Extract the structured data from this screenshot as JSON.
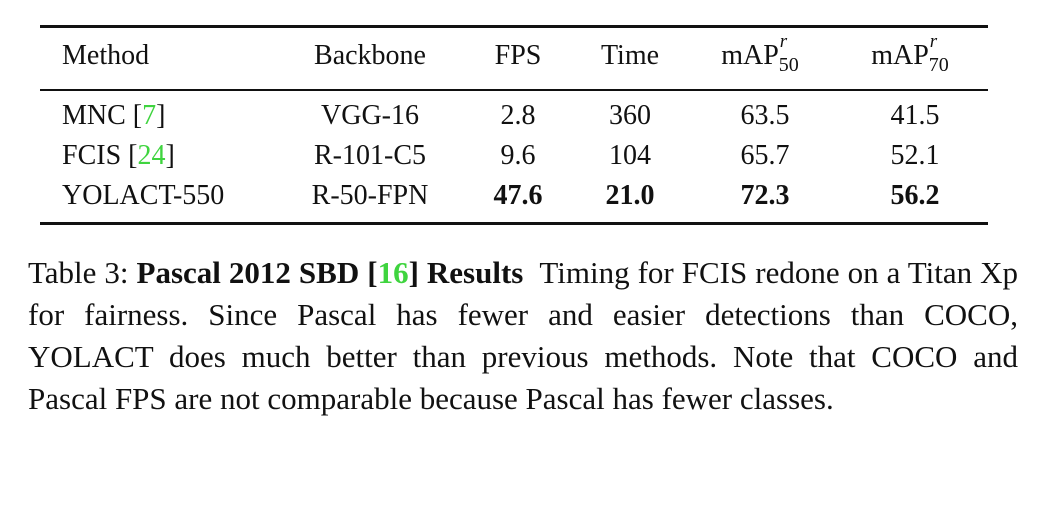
{
  "table": {
    "headers": {
      "method": "Method",
      "backbone": "Backbone",
      "fps": "FPS",
      "time": "Time",
      "map50": {
        "base": "mAP",
        "sup": "r",
        "sub": "50"
      },
      "map70": {
        "base": "mAP",
        "sup": "r",
        "sub": "70"
      }
    },
    "rows": [
      {
        "method": "MNC",
        "cite_open": "[",
        "cite": "7",
        "cite_close": "]",
        "backbone": "VGG-16",
        "fps": "2.8",
        "time": "360",
        "map50": "63.5",
        "map70": "41.5"
      },
      {
        "method": "FCIS",
        "cite_open": "[",
        "cite": "24",
        "cite_close": "]",
        "backbone": "R-101-C5",
        "fps": "9.6",
        "time": "104",
        "map50": "65.7",
        "map70": "52.1"
      },
      {
        "method": "YOLACT-550",
        "backbone": "R-50-FPN",
        "fps": "47.6",
        "time": "21.0",
        "map50": "72.3",
        "map70": "56.2"
      }
    ]
  },
  "caption": {
    "label": "Table 3:",
    "title_pre": "Pascal 2012 SBD [",
    "title_cite": "16",
    "title_post": "] Results",
    "body": "Timing for FCIS redone on a Titan Xp for fairness. Since Pascal has fewer and easier detections than COCO, YOLACT does much better than previous methods. Note that COCO and Pascal FPS are not comparable because Pascal has fewer classes."
  },
  "colors": {
    "citation": "#3fd43f",
    "text": "#111111"
  }
}
